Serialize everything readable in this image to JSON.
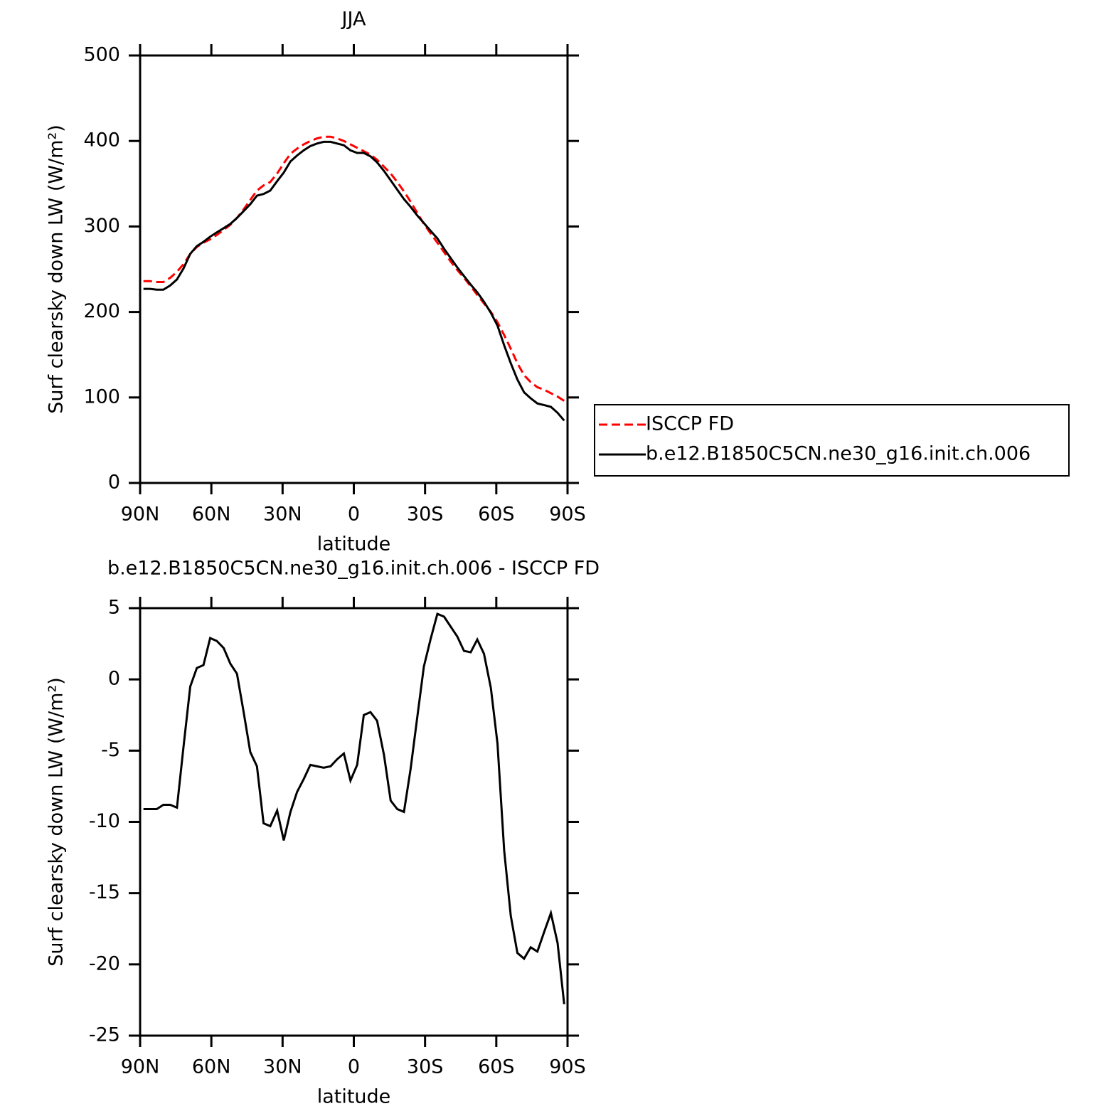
{
  "chart_data": [
    {
      "type": "line",
      "title": "JJA",
      "xlabel": "latitude",
      "ylabel": "Surf clearsky down LW (W/m²)",
      "x": [
        88.6,
        85.8,
        83.0,
        80.2,
        77.3,
        74.5,
        71.7,
        68.9,
        66.1,
        63.3,
        60.5,
        57.7,
        54.8,
        52.0,
        49.2,
        46.4,
        43.6,
        40.8,
        38.0,
        35.2,
        32.3,
        29.5,
        26.7,
        23.9,
        21.1,
        18.3,
        15.5,
        12.7,
        9.8,
        7.0,
        4.2,
        1.4,
        -1.4,
        -4.2,
        -7.0,
        -9.8,
        -12.7,
        -15.5,
        -18.3,
        -21.1,
        -23.9,
        -26.7,
        -29.5,
        -32.3,
        -35.2,
        -38.0,
        -40.8,
        -43.6,
        -46.4,
        -49.2,
        -52.0,
        -54.8,
        -57.7,
        -60.5,
        -63.3,
        -66.1,
        -68.9,
        -71.7,
        -74.5,
        -77.3,
        -80.2,
        -83.0,
        -85.8,
        -88.6
      ],
      "xlim": [
        90,
        -90
      ],
      "xticks": [
        {
          "value": 90,
          "label": "90N"
        },
        {
          "value": 60,
          "label": "60N"
        },
        {
          "value": 30,
          "label": "30N"
        },
        0,
        {
          "value": -30,
          "label": "30S"
        },
        {
          "value": -60,
          "label": "60S"
        },
        {
          "value": -90,
          "label": "90S"
        }
      ],
      "ylim": [
        0,
        500
      ],
      "yticks": [
        0,
        100,
        200,
        300,
        400,
        500
      ],
      "legend": "right",
      "series": [
        {
          "name": "ISCCP FD",
          "color": "#ff0000",
          "dash": "dashed",
          "values": [
            236,
            236,
            235,
            235,
            240,
            247,
            256,
            268,
            276,
            281,
            285,
            290,
            296,
            302,
            310,
            320,
            331,
            342,
            348,
            352,
            362,
            374,
            385,
            391,
            396,
            400,
            403,
            405,
            405,
            403,
            400,
            396,
            392,
            388,
            384,
            378,
            370,
            362,
            352,
            341,
            329,
            316,
            303,
            292,
            281,
            270,
            259,
            249,
            240,
            230,
            220,
            210,
            200,
            188,
            173,
            157,
            140,
            126,
            118,
            112,
            109,
            105,
            101,
            96
          ]
        },
        {
          "name": "b.e12.B1850C5CN.ne30_g16.init.ch.006",
          "color": "#000000",
          "dash": "solid",
          "values": [
            227,
            227,
            226,
            226,
            231,
            238,
            251,
            268,
            277,
            282,
            288,
            293,
            298,
            303,
            310,
            318,
            326,
            336,
            338,
            342,
            353,
            363,
            376,
            383,
            389,
            394,
            397,
            399,
            399,
            397,
            395,
            389,
            386,
            386,
            382,
            375,
            365,
            354,
            343,
            332,
            323,
            313,
            304,
            295,
            286,
            274,
            263,
            252,
            242,
            232,
            223,
            212,
            199,
            184,
            161,
            140,
            121,
            106,
            99,
            93,
            91,
            89,
            82,
            73
          ]
        }
      ]
    },
    {
      "type": "line",
      "title": "b.e12.B1850C5CN.ne30_g16.init.ch.006 - ISCCP FD",
      "xlabel": "latitude",
      "ylabel": "Surf clearsky down LW (W/m²)",
      "x": [
        88.6,
        85.8,
        83.0,
        80.2,
        77.3,
        74.5,
        71.7,
        68.9,
        66.1,
        63.3,
        60.5,
        57.7,
        54.8,
        52.0,
        49.2,
        46.4,
        43.6,
        40.8,
        38.0,
        35.2,
        32.3,
        29.5,
        26.7,
        23.9,
        21.1,
        18.3,
        15.5,
        12.7,
        9.8,
        7.0,
        4.2,
        1.4,
        -1.4,
        -4.2,
        -7.0,
        -9.8,
        -12.7,
        -15.5,
        -18.3,
        -21.1,
        -23.9,
        -26.7,
        -29.5,
        -32.3,
        -35.2,
        -38.0,
        -40.8,
        -43.6,
        -46.4,
        -49.2,
        -52.0,
        -54.8,
        -57.7,
        -60.5,
        -63.3,
        -66.1,
        -68.9,
        -71.7,
        -74.5,
        -77.3,
        -80.2,
        -83.0,
        -85.8,
        -88.6
      ],
      "xlim": [
        90,
        -90
      ],
      "xticks": [
        {
          "value": 90,
          "label": "90N"
        },
        {
          "value": 60,
          "label": "60N"
        },
        {
          "value": 30,
          "label": "30N"
        },
        0,
        {
          "value": -30,
          "label": "30S"
        },
        {
          "value": -60,
          "label": "60S"
        },
        {
          "value": -90,
          "label": "90S"
        }
      ],
      "ylim": [
        -25,
        5
      ],
      "yticks": [
        -25,
        -20,
        -15,
        -10,
        -5,
        0,
        5
      ],
      "series": [
        {
          "color": "#000000",
          "dash": "solid",
          "values": [
            -9.1,
            -9.1,
            -9.1,
            -8.8,
            -8.8,
            -9.0,
            -4.7,
            -0.5,
            0.8,
            1.0,
            2.9,
            2.7,
            2.2,
            1.1,
            0.4,
            -2.3,
            -5.1,
            -6.1,
            -10.1,
            -10.3,
            -9.2,
            -11.3,
            -9.3,
            -7.9,
            -7.0,
            -6.0,
            -6.1,
            -6.2,
            -6.1,
            -5.6,
            -5.2,
            -7.1,
            -6.0,
            -2.5,
            -2.3,
            -2.9,
            -5.3,
            -8.5,
            -9.1,
            -9.3,
            -6.3,
            -2.7,
            0.9,
            2.8,
            4.6,
            4.4,
            3.7,
            3.0,
            2.0,
            1.9,
            2.8,
            1.8,
            -0.6,
            -4.5,
            -12.0,
            -16.6,
            -19.2,
            -19.6,
            -18.8,
            -19.1,
            -17.7,
            -16.4,
            -18.5,
            -22.8
          ]
        }
      ]
    }
  ]
}
